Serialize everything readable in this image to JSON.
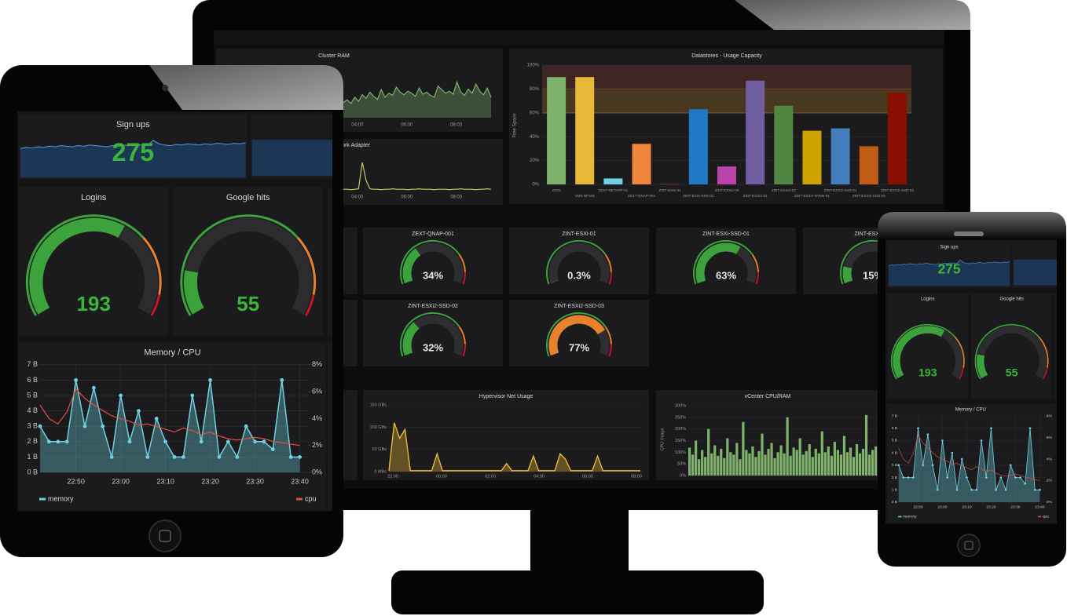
{
  "monitor": {
    "cluster_ram": {
      "title": "Cluster RAM",
      "xticks": [
        "04:00",
        "06:00",
        "08:00"
      ],
      "values": [
        30,
        35,
        28,
        40,
        32,
        45,
        38,
        50,
        42,
        36,
        55,
        40,
        48,
        44,
        60,
        50,
        45,
        52,
        48,
        42,
        58,
        46,
        50,
        44,
        40,
        62,
        55,
        48,
        52,
        46,
        70,
        50,
        44,
        56,
        48,
        66,
        52,
        45,
        58,
        40
      ]
    },
    "network_adapter": {
      "title": "Network Adapter",
      "xticks": [
        "04:00",
        "06:00",
        "08:00"
      ],
      "values": [
        3,
        3,
        2,
        3,
        4,
        60,
        22,
        4,
        3,
        3,
        2,
        3,
        3,
        4,
        3,
        3,
        3,
        2,
        3,
        3,
        4,
        3,
        3,
        3,
        2,
        3,
        3,
        3,
        2,
        3,
        3,
        4,
        3,
        3,
        3,
        2,
        3,
        3,
        4,
        3
      ]
    },
    "datastores": {
      "title": "Datastores - Usage Capacity",
      "ylabel": "Free Space",
      "categories": [
        "ISOS",
        "VMS-NFS01",
        "ZEXT-NETAPP-01",
        "ZEXT-QNAP-001",
        "ZINT-ESXi-01",
        "ZINT-ESXi-SSD-01",
        "ZINT-ESXi2-00",
        "ZINT-ESXi2-01",
        "ZINT-ESXi2-02",
        "ZINT-ESXi2-NVMe-01",
        "ZINT-ESXi2-SSD-01",
        "ZINT-ESXi2-SSD-02",
        "ZINT-ESXi2-SSD-03"
      ],
      "values": [
        90,
        90,
        5,
        34,
        0.3,
        63,
        15,
        87,
        66,
        45,
        47,
        32,
        77
      ],
      "colors": [
        "#7eb26d",
        "#eab839",
        "#6ed0e0",
        "#ef843c",
        "#e24d42",
        "#1f78c1",
        "#ba43a9",
        "#705da0",
        "#508642",
        "#cca300",
        "#447ebc",
        "#c15c17",
        "#890f02"
      ],
      "ylim": [
        0,
        100
      ],
      "yticks": [
        {
          "value": 0,
          "label": "0%"
        },
        {
          "value": 20,
          "label": "20%"
        },
        {
          "value": 40,
          "label": "40%"
        },
        {
          "value": 60,
          "label": "60%"
        },
        {
          "value": 80,
          "label": "80%"
        },
        {
          "value": 100,
          "label": "100%"
        }
      ],
      "thresholds": [
        {
          "value": 60,
          "color": "#e5a02b"
        },
        {
          "value": 80,
          "color": "#c14b3c"
        }
      ]
    },
    "gauges": [
      {
        "title": "ZEXT-QNAP-001",
        "value": 34,
        "value_label": "34%",
        "color": "#3ca33c"
      },
      {
        "title": "ZINT-ESXi-01",
        "value": 0.3,
        "value_label": "0.3%",
        "color": "#3ca33c"
      },
      {
        "title": "ZINT-ESXi-SSD-01",
        "value": 63,
        "value_label": "63%",
        "color": "#3ca33c"
      },
      {
        "title": "ZINT-ESXi2-00",
        "value": 15,
        "value_label": "15%",
        "color": "#3ca33c"
      },
      {
        "title": "ZINT-ESXi2-SSD-02",
        "value": 32,
        "value_label": "32%",
        "color": "#3ca33c"
      },
      {
        "title": "ZINT-ESXi2-SSD-03",
        "value": 77,
        "value_label": "77%",
        "color": "#e5822b"
      }
    ],
    "hypervisor_net": {
      "title": "Hypervisor Net Usage",
      "ylim": [
        0,
        150
      ],
      "yticks": [
        {
          "value": 0,
          "label": "0 MBs"
        },
        {
          "value": 50,
          "label": "50 GBs"
        },
        {
          "value": 100,
          "label": "100 GBs"
        },
        {
          "value": 150,
          "label": "150 GBs"
        }
      ],
      "xticks": [
        "22:00",
        "00:00",
        "02:00",
        "04:00",
        "06:00",
        "08:00"
      ],
      "values": [
        2,
        110,
        75,
        95,
        2,
        2,
        2,
        2,
        2,
        40,
        2,
        2,
        2,
        2,
        2,
        2,
        2,
        2,
        2,
        2,
        2,
        2,
        18,
        2,
        2,
        2,
        2,
        35,
        2,
        2,
        2,
        2,
        40,
        28,
        2,
        2,
        2,
        2,
        2,
        35,
        2,
        2,
        2,
        2,
        2,
        2,
        2,
        2
      ]
    },
    "vcenter": {
      "title": "vCenter CPU/RAM",
      "ylabel": "CPU Usage",
      "ylim": [
        0,
        300
      ],
      "yticks": [
        {
          "value": 0,
          "label": "0%"
        },
        {
          "value": 50,
          "label": "50%"
        },
        {
          "value": 100,
          "label": "100%"
        },
        {
          "value": 150,
          "label": "150%"
        },
        {
          "value": 200,
          "label": "200%"
        },
        {
          "value": 250,
          "label": "250%"
        },
        {
          "value": 300,
          "label": "300%"
        }
      ],
      "values": [
        120,
        90,
        150,
        70,
        110,
        80,
        200,
        95,
        130,
        85,
        115,
        75,
        160,
        100,
        90,
        140,
        70,
        230,
        110,
        95,
        125,
        80,
        105,
        180,
        90,
        115,
        140,
        75,
        100,
        130,
        95,
        250,
        85,
        120,
        110,
        160,
        90,
        105,
        135,
        80,
        115,
        95,
        190,
        100,
        125,
        85,
        145,
        110,
        90,
        170,
        100,
        120,
        80,
        135,
        95,
        115,
        260,
        90,
        110,
        125
      ]
    }
  },
  "dashboard": {
    "signups": {
      "title": "Sign ups",
      "value": 275,
      "trend": [
        52,
        54,
        53,
        55,
        54,
        56,
        55,
        57,
        56,
        55,
        57,
        56,
        58,
        57,
        56,
        55,
        57,
        56,
        58,
        57,
        59,
        58,
        57,
        66,
        60,
        58,
        57,
        59,
        58,
        60,
        59,
        58,
        60,
        59,
        61,
        60,
        59,
        61,
        60,
        62
      ]
    },
    "logins": {
      "title": "Logins",
      "value": 193
    },
    "google_hits": {
      "title": "Google hits",
      "value": 55
    },
    "memory_cpu": {
      "title": "Memory / CPU",
      "x": [
        1362,
        1364,
        1366,
        1368,
        1370,
        1372,
        1374,
        1376,
        1378,
        1380,
        1382,
        1384,
        1386,
        1388,
        1390,
        1392,
        1394,
        1396,
        1398,
        1400,
        1402,
        1404,
        1406,
        1408,
        1410,
        1412,
        1414,
        1416,
        1418,
        1420
      ],
      "xlim": [
        1362,
        1422
      ],
      "xticks": [
        {
          "value": 1370,
          "label": "22:50"
        },
        {
          "value": 1380,
          "label": "23:00"
        },
        {
          "value": 1390,
          "label": "23:10"
        },
        {
          "value": 1400,
          "label": "23:20"
        },
        {
          "value": 1410,
          "label": "23:30"
        },
        {
          "value": 1420,
          "label": "23:40"
        }
      ],
      "ylim": [
        0,
        7
      ],
      "yticks": [
        {
          "value": 0,
          "label": "0 B"
        },
        {
          "value": 1,
          "label": "1 B"
        },
        {
          "value": 2,
          "label": "2 B"
        },
        {
          "value": 3,
          "label": "3 B"
        },
        {
          "value": 4,
          "label": "4 B"
        },
        {
          "value": 5,
          "label": "5 B"
        },
        {
          "value": 6,
          "label": "6 B"
        },
        {
          "value": 7,
          "label": "7 B"
        }
      ],
      "y2lim": [
        0,
        8
      ],
      "y2ticks": [
        {
          "value": 0,
          "label": "0%"
        },
        {
          "value": 2,
          "label": "2%"
        },
        {
          "value": 4,
          "label": "4%"
        },
        {
          "value": 6,
          "label": "6%"
        },
        {
          "value": 8,
          "label": "8%"
        }
      ],
      "series": [
        {
          "name": "memory",
          "color": "#6ed0e0",
          "values": [
            3,
            2,
            2,
            2,
            6,
            3,
            5.5,
            3,
            1,
            5,
            2,
            4,
            1,
            3.5,
            2,
            1,
            1,
            5,
            2,
            6,
            1,
            2,
            1,
            3,
            2,
            2,
            1.5,
            6,
            1,
            1
          ]
        },
        {
          "name": "cpu",
          "color": "#e24d42",
          "axis": "y2",
          "values": [
            5,
            4,
            3.6,
            4.5,
            6.2,
            5.5,
            5,
            4.6,
            4.2,
            4,
            3.8,
            3.5,
            3.6,
            3.4,
            3.2,
            3,
            3.3,
            3.1,
            2.8,
            3,
            2.7,
            2.5,
            2.4,
            2.5,
            2.6,
            2.5,
            2.3,
            2.2,
            2.1,
            2
          ]
        }
      ]
    }
  }
}
